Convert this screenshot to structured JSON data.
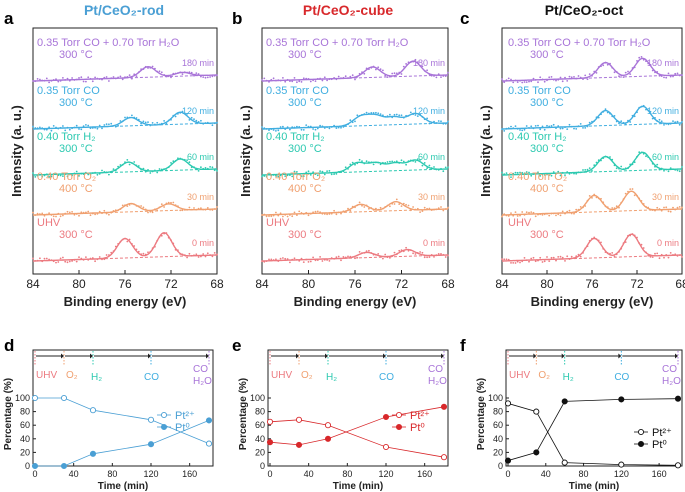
{
  "colors": {
    "rod": "#4a9fd4",
    "cube": "#d8282b",
    "oct": "#111111",
    "purple": "#a874d8",
    "blue": "#40aee0",
    "teal": "#2cc9b0",
    "orange": "#f0a070",
    "red": "#ec7a80",
    "axis": "#222222"
  },
  "panels": {
    "a": {
      "letter": "a",
      "title": "Pt/CeO₂-rod"
    },
    "b": {
      "letter": "b",
      "title": "Pt/CeO₂-cube"
    },
    "c": {
      "letter": "c",
      "title": "Pt/CeO₂-oct"
    },
    "d": {
      "letter": "d"
    },
    "e": {
      "letter": "e"
    },
    "f": {
      "letter": "f"
    }
  },
  "xps_common": {
    "xlabel": "Binding energy (eV)",
    "ylabel": "Intensity (a. u.)",
    "xticks": [
      "84",
      "80",
      "76",
      "72",
      "68"
    ],
    "spectra": [
      {
        "l1": "0.35 Torr CO + 0.70 Torr H₂O",
        "l2": "300 °C",
        "time": "180 min",
        "color": "purple"
      },
      {
        "l1": "0.35 Torr CO",
        "l2": "300 °C",
        "time": "120 min",
        "color": "blue"
      },
      {
        "l1": "0.40 Torr H₂",
        "l2": "300 °C",
        "time": "60 min",
        "color": "teal"
      },
      {
        "l1": "0.40 Torr O₂",
        "l2": "400 °C",
        "time": "30 min",
        "color": "orange"
      },
      {
        "l1": "UHV",
        "l2": "300 °C",
        "time": "0 min",
        "color": "red"
      }
    ]
  },
  "timeline": {
    "labels": [
      "UHV",
      "O₂",
      "H₂",
      "CO",
      "CO",
      "H₂O"
    ]
  },
  "pct_common": {
    "xlabel": "Time (min)",
    "ylabel": "Percentage (%)",
    "xticks": [
      "0",
      "40",
      "80",
      "120",
      "160"
    ],
    "yticks": [
      "0",
      "20",
      "40",
      "60",
      "80",
      "100"
    ]
  },
  "chart_data": [
    {
      "type": "line",
      "panel": "a",
      "title": "Pt/CeO₂-rod",
      "xlabel": "Binding energy (eV)",
      "ylabel": "Intensity (a. u.)",
      "xlim": [
        84,
        68
      ],
      "series": [
        {
          "name": "0.35 Torr CO + 0.70 Torr H₂O, 300 °C, 180 min",
          "peaks": [
            {
              "x": 74.0,
              "h": 0.7
            },
            {
              "x": 71.0,
              "h": 0.25
            }
          ]
        },
        {
          "name": "0.35 Torr CO, 300 °C, 120 min",
          "peaks": [
            {
              "x": 75.5,
              "h": 0.55
            },
            {
              "x": 71.2,
              "h": 0.8
            }
          ]
        },
        {
          "name": "0.40 Torr H₂, 300 °C, 60 min",
          "peaks": [
            {
              "x": 75.7,
              "h": 0.65
            },
            {
              "x": 71.2,
              "h": 0.75
            }
          ]
        },
        {
          "name": "0.40 Torr O₂, 400 °C, 30 min",
          "peaks": [
            {
              "x": 75.5,
              "h": 0.55
            },
            {
              "x": 72.2,
              "h": 0.45
            }
          ]
        },
        {
          "name": "UHV, 300 °C, 0 min",
          "peaks": [
            {
              "x": 76.0,
              "h": 1.3
            },
            {
              "x": 72.6,
              "h": 1.6
            }
          ]
        }
      ]
    },
    {
      "type": "line",
      "panel": "b",
      "title": "Pt/CeO₂-cube",
      "xlabel": "Binding energy (eV)",
      "ylabel": "Intensity (a. u.)",
      "xlim": [
        84,
        68
      ],
      "series": [
        {
          "name": "0.35 Torr CO + 0.70 Torr H₂O, 300 °C, 180 min",
          "peaks": [
            {
              "x": 74.5,
              "h": 0.7
            },
            {
              "x": 71.0,
              "h": 1.0
            }
          ]
        },
        {
          "name": "0.35 Torr CO, 300 °C, 120 min",
          "peaks": [
            {
              "x": 75.5,
              "h": 0.6
            },
            {
              "x": 74.2,
              "h": 0.6
            },
            {
              "x": 72.6,
              "h": 0.5
            },
            {
              "x": 70.8,
              "h": 0.7
            }
          ]
        },
        {
          "name": "0.40 Torr H₂, 300 °C, 60 min",
          "peaks": [
            {
              "x": 75.8,
              "h": 0.6
            },
            {
              "x": 74.2,
              "h": 0.55
            },
            {
              "x": 72.5,
              "h": 0.5
            },
            {
              "x": 70.8,
              "h": 0.65
            }
          ]
        },
        {
          "name": "0.40 Torr O₂, 400 °C, 30 min",
          "peaks": [
            {
              "x": 75.5,
              "h": 0.5
            },
            {
              "x": 72.5,
              "h": 0.6
            }
          ]
        },
        {
          "name": "UHV, 300 °C, 0 min",
          "peaks": [
            {
              "x": 75.0,
              "h": 0.35
            },
            {
              "x": 71.5,
              "h": 0.45
            }
          ]
        }
      ]
    },
    {
      "type": "line",
      "panel": "c",
      "title": "Pt/CeO₂-oct",
      "xlabel": "Binding energy (eV)",
      "ylabel": "Intensity (a. u.)",
      "xlim": [
        84,
        68
      ],
      "series": [
        {
          "name": "0.35 Torr CO + 0.70 Torr H₂O, 300 °C, 180 min",
          "peaks": [
            {
              "x": 74.8,
              "h": 1.0
            },
            {
              "x": 71.5,
              "h": 1.2
            }
          ]
        },
        {
          "name": "0.35 Torr CO, 300 °C, 120 min",
          "peaks": [
            {
              "x": 74.8,
              "h": 1.0
            },
            {
              "x": 71.5,
              "h": 1.2
            }
          ]
        },
        {
          "name": "0.40 Torr H₂, 300 °C, 60 min",
          "peaks": [
            {
              "x": 74.8,
              "h": 1.0
            },
            {
              "x": 71.5,
              "h": 1.2
            }
          ]
        },
        {
          "name": "0.40 Torr O₂, 400 °C, 30 min",
          "peaks": [
            {
              "x": 75.8,
              "h": 1.1
            },
            {
              "x": 72.5,
              "h": 1.3
            }
          ]
        },
        {
          "name": "UHV, 300 °C, 0 min",
          "peaks": [
            {
              "x": 75.8,
              "h": 1.3
            },
            {
              "x": 72.5,
              "h": 1.5
            }
          ]
        }
      ]
    },
    {
      "type": "line",
      "panel": "d",
      "xlabel": "Time (min)",
      "ylabel": "Percentage (%)",
      "ylim": [
        0,
        100
      ],
      "x": [
        0,
        30,
        60,
        120,
        180
      ],
      "series": [
        {
          "name": "Pt²⁺",
          "values": [
            100,
            100,
            82,
            68,
            33
          ],
          "marker": "open"
        },
        {
          "name": "Pt⁰",
          "values": [
            0,
            0,
            18,
            32,
            67
          ],
          "marker": "filled"
        }
      ]
    },
    {
      "type": "line",
      "panel": "e",
      "xlabel": "Time (min)",
      "ylabel": "Percentage (%)",
      "ylim": [
        0,
        100
      ],
      "x": [
        0,
        30,
        60,
        120,
        180
      ],
      "series": [
        {
          "name": "Pt²⁺",
          "values": [
            65,
            68,
            60,
            28,
            13
          ],
          "marker": "open"
        },
        {
          "name": "Pt⁰",
          "values": [
            35,
            31,
            40,
            72,
            87
          ],
          "marker": "filled"
        }
      ]
    },
    {
      "type": "line",
      "panel": "f",
      "xlabel": "Time (min)",
      "ylabel": "Percentage (%)",
      "ylim": [
        0,
        100
      ],
      "x": [
        0,
        30,
        60,
        120,
        180
      ],
      "series": [
        {
          "name": "Pt²⁺",
          "values": [
            92,
            80,
            5,
            2,
            1
          ],
          "marker": "open"
        },
        {
          "name": "Pt⁰",
          "values": [
            8,
            20,
            95,
            98,
            99
          ],
          "marker": "filled"
        }
      ]
    }
  ]
}
